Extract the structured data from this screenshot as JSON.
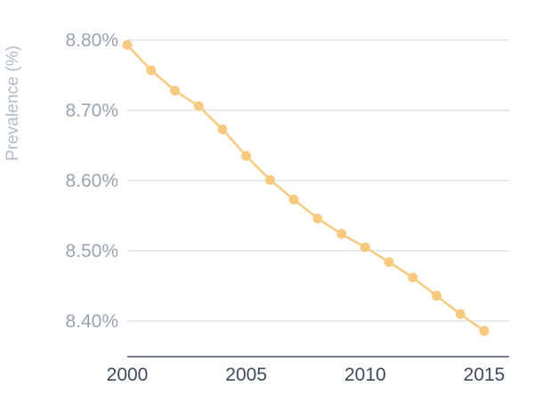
{
  "chart_data": {
    "type": "line",
    "title": "",
    "xlabel": "",
    "ylabel": "Prevalence (%)",
    "x": [
      2000,
      2001,
      2002,
      2003,
      2004,
      2005,
      2006,
      2007,
      2008,
      2009,
      2010,
      2011,
      2012,
      2013,
      2014,
      2015
    ],
    "series": [
      {
        "values": [
          8.793,
          8.757,
          8.728,
          8.706,
          8.673,
          8.635,
          8.601,
          8.573,
          8.546,
          8.524,
          8.505,
          8.484,
          8.462,
          8.436,
          8.41,
          8.386
        ]
      }
    ],
    "xticks": [
      2000,
      2005,
      2010,
      2015
    ],
    "xtick_labels": [
      "2000",
      "2005",
      "2010",
      "2015"
    ],
    "yticks": [
      8.4,
      8.5,
      8.6,
      8.7,
      8.8
    ],
    "ytick_labels": [
      "8.40%",
      "8.50%",
      "8.60%",
      "8.70%",
      "8.80%"
    ],
    "xlim": [
      2000,
      2015
    ],
    "ylim": [
      8.35,
      8.8
    ],
    "grid": "horizontal",
    "legend": "none",
    "colors": {
      "line": "#f9c97e",
      "grid": "#cfd6e0",
      "axis": "#4a5568"
    }
  }
}
